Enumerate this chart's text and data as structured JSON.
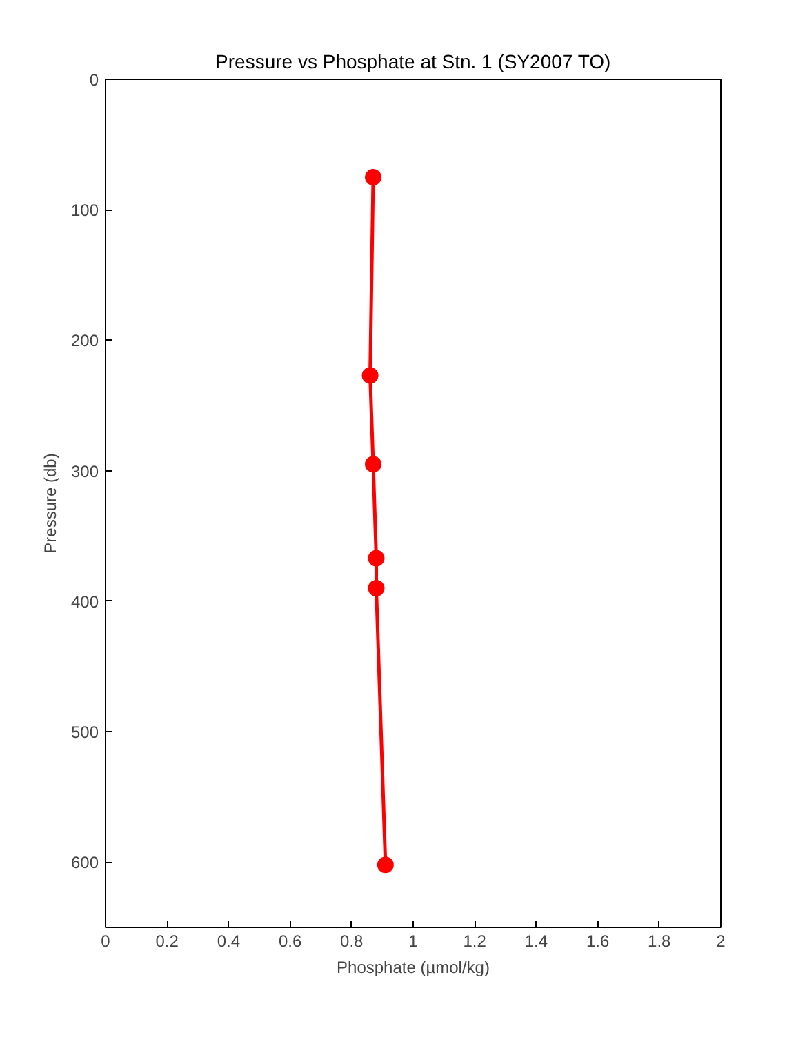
{
  "chart_data": {
    "type": "line",
    "title": "Pressure vs Phosphate at Stn. 1 (SY2007 TO)",
    "xlabel": "Phosphate (µmol/kg)",
    "ylabel": "Pressure (db)",
    "xlim": [
      0,
      2
    ],
    "xticks": [
      0,
      0.2,
      0.4,
      0.6,
      0.8,
      1,
      1.2,
      1.4,
      1.6,
      1.8,
      2
    ],
    "ylim": [
      650,
      0
    ],
    "yticks": [
      0,
      100,
      200,
      300,
      400,
      500,
      600
    ],
    "marker": "circle",
    "line_style": "solid",
    "grid": false,
    "series": [
      {
        "color": "#ff0000",
        "x": [
          0.87,
          0.86,
          0.87,
          0.88,
          0.88,
          0.91
        ],
        "values": [
          75,
          227,
          295,
          367,
          390,
          602
        ]
      }
    ]
  }
}
